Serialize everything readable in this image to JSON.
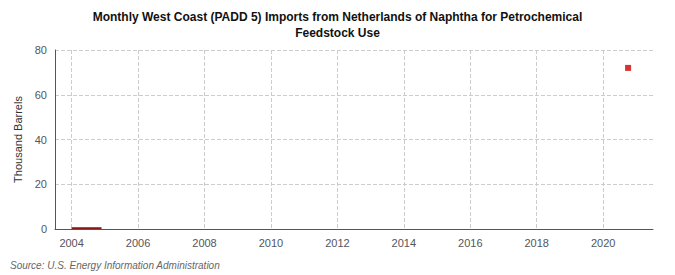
{
  "chart_data": {
    "type": "bar",
    "title": "Monthly West Coast (PADD 5) Imports from Netherlands of Naphtha for Petrochemical\nFeedstock Use",
    "ylabel": "Thousand Barrels",
    "annotation": "Source: U.S. Energy Information Administration",
    "xlim": [
      2003.5,
      2021.5
    ],
    "xticks": [
      2004,
      2006,
      2008,
      2010,
      2012,
      2014,
      2016,
      2018,
      2020
    ],
    "ylim": [
      0,
      80
    ],
    "yticks": [
      0,
      20,
      40,
      60,
      80
    ],
    "grid": true,
    "series": [
      {
        "type": "bar",
        "color": "#8b1a1a",
        "bins": [
          2004.0,
          2004.9
        ],
        "values": [
          0.8
        ]
      },
      {
        "type": "scatter",
        "color": "#cc0000",
        "marker": "square",
        "x": [
          2020.75
        ],
        "values": [
          72
        ]
      }
    ]
  }
}
